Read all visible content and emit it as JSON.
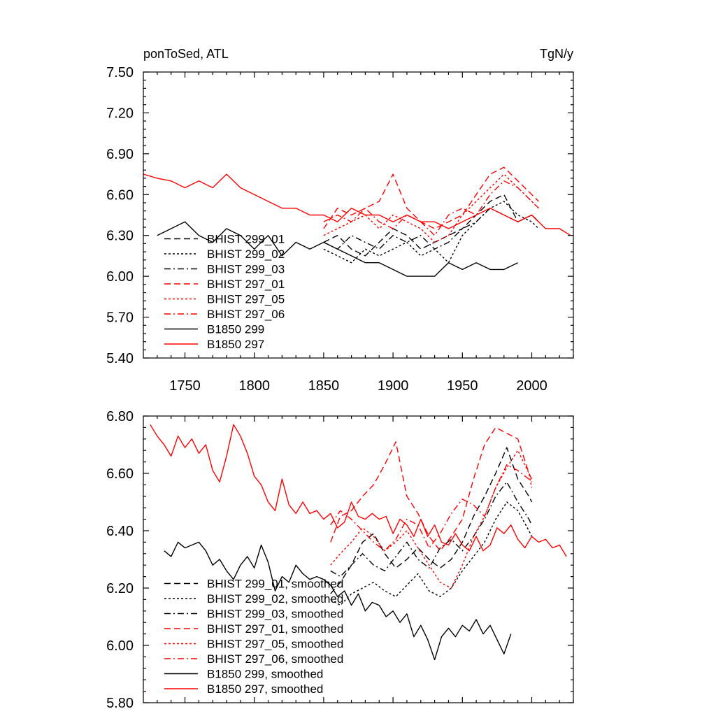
{
  "chart_data": [
    {
      "type": "line",
      "title": "ponToSed, ATL",
      "units": "TgN/y",
      "xlim": [
        1720,
        2030
      ],
      "ylim": [
        5.4,
        7.5
      ],
      "xticks": [
        1750,
        1800,
        1850,
        1900,
        1950,
        2000
      ],
      "yticks": [
        "5.40",
        "5.70",
        "6.00",
        "6.30",
        "6.60",
        "6.90",
        "7.20",
        "7.50"
      ],
      "legend_position": "lower-left",
      "series": [
        {
          "name": "BHIST 299_01",
          "color": "#000000",
          "dash": "long-dash",
          "x": [
            1850,
            1860,
            1870,
            1880,
            1890,
            1900,
            1910,
            1920,
            1930,
            1940,
            1950,
            1960,
            1970,
            1980,
            1990,
            2000,
            2005
          ],
          "y": [
            6.25,
            6.3,
            6.2,
            6.15,
            6.25,
            6.35,
            6.3,
            6.2,
            6.25,
            6.3,
            6.35,
            6.45,
            6.55,
            6.6,
            6.4,
            6.45,
            6.4
          ]
        },
        {
          "name": "BHIST 299_02",
          "color": "#000000",
          "dash": "dotted",
          "x": [
            1850,
            1860,
            1870,
            1880,
            1890,
            1900,
            1910,
            1920,
            1930,
            1940,
            1950,
            1960,
            1970,
            1980,
            1990,
            2000,
            2005
          ],
          "y": [
            6.2,
            6.15,
            6.1,
            6.2,
            6.15,
            6.2,
            6.25,
            6.15,
            6.2,
            6.1,
            6.3,
            6.4,
            6.5,
            6.55,
            6.45,
            6.4,
            6.35
          ]
        },
        {
          "name": "BHIST 299_03",
          "color": "#000000",
          "dash": "dash-dot",
          "x": [
            1850,
            1860,
            1870,
            1880,
            1890,
            1900,
            1910,
            1920,
            1930,
            1940,
            1950,
            1960,
            1970,
            1980,
            1990,
            2000,
            2005
          ],
          "y": [
            6.25,
            6.2,
            6.3,
            6.25,
            6.2,
            6.3,
            6.25,
            6.3,
            6.2,
            6.25,
            6.35,
            6.4,
            6.5,
            6.45,
            6.4,
            6.45,
            6.4
          ]
        },
        {
          "name": "BHIST 297_01",
          "color": "#ff0000",
          "dash": "long-dash",
          "x": [
            1850,
            1860,
            1870,
            1880,
            1890,
            1900,
            1910,
            1920,
            1930,
            1940,
            1950,
            1960,
            1970,
            1980,
            1990,
            2000,
            2005
          ],
          "y": [
            6.35,
            6.5,
            6.45,
            6.5,
            6.55,
            6.75,
            6.5,
            6.4,
            6.35,
            6.4,
            6.45,
            6.6,
            6.75,
            6.8,
            6.7,
            6.6,
            6.55
          ]
        },
        {
          "name": "BHIST 297_05",
          "color": "#ff0000",
          "dash": "dotted",
          "x": [
            1850,
            1860,
            1870,
            1880,
            1890,
            1900,
            1910,
            1920,
            1930,
            1940,
            1950,
            1960,
            1970,
            1980,
            1990,
            2000,
            2005
          ],
          "y": [
            6.3,
            6.35,
            6.4,
            6.45,
            6.35,
            6.45,
            6.4,
            6.35,
            6.25,
            6.3,
            6.45,
            6.55,
            6.65,
            6.75,
            6.65,
            6.55,
            6.5
          ]
        },
        {
          "name": "BHIST 297_06",
          "color": "#ff0000",
          "dash": "dash-dot",
          "x": [
            1850,
            1860,
            1870,
            1880,
            1890,
            1900,
            1910,
            1920,
            1930,
            1940,
            1950,
            1960,
            1970,
            1980,
            1990,
            2000,
            2005
          ],
          "y": [
            6.4,
            6.45,
            6.4,
            6.5,
            6.4,
            6.35,
            6.45,
            6.4,
            6.3,
            6.45,
            6.5,
            6.45,
            6.6,
            6.7,
            6.65,
            6.55,
            6.5
          ]
        },
        {
          "name": "B1850 299",
          "color": "#000000",
          "dash": "solid",
          "x": [
            1730,
            1740,
            1750,
            1760,
            1770,
            1780,
            1790,
            1800,
            1810,
            1820,
            1830,
            1840,
            1850,
            1860,
            1870,
            1880,
            1890,
            1900,
            1910,
            1920,
            1930,
            1940,
            1950,
            1960,
            1970,
            1980,
            1990
          ],
          "y": [
            6.3,
            6.35,
            6.4,
            6.3,
            6.25,
            6.35,
            6.3,
            6.2,
            6.3,
            6.15,
            6.25,
            6.2,
            6.25,
            6.2,
            6.15,
            6.1,
            6.1,
            6.05,
            6.0,
            6.0,
            6.0,
            6.1,
            6.05,
            6.1,
            6.05,
            6.05,
            6.1
          ]
        },
        {
          "name": "B1850 297",
          "color": "#ff0000",
          "dash": "solid",
          "x": [
            1720,
            1730,
            1740,
            1750,
            1760,
            1770,
            1780,
            1790,
            1800,
            1810,
            1820,
            1830,
            1840,
            1850,
            1860,
            1870,
            1880,
            1890,
            1900,
            1910,
            1920,
            1930,
            1940,
            1950,
            1960,
            1970,
            1980,
            1990,
            2000,
            2010,
            2020,
            2028
          ],
          "y": [
            6.75,
            6.72,
            6.7,
            6.65,
            6.7,
            6.65,
            6.75,
            6.65,
            6.6,
            6.55,
            6.5,
            6.5,
            6.45,
            6.45,
            6.4,
            6.5,
            6.45,
            6.45,
            6.4,
            6.45,
            6.4,
            6.4,
            6.35,
            6.4,
            6.45,
            6.5,
            6.45,
            6.4,
            6.45,
            6.35,
            6.35,
            6.3
          ]
        }
      ]
    },
    {
      "type": "line",
      "xlim": [
        1720,
        2030
      ],
      "ylim": [
        5.8,
        6.8
      ],
      "yticks": [
        "5.80",
        "6.00",
        "6.20",
        "6.40",
        "6.60",
        "6.80"
      ],
      "legend_position": "lower-left",
      "series": [
        {
          "name": "BHIST 299_01, smoothed",
          "color": "#000000",
          "dash": "long-dash",
          "x": [
            1855,
            1862,
            1870,
            1878,
            1886,
            1894,
            1902,
            1910,
            1918,
            1926,
            1934,
            1942,
            1950,
            1958,
            1966,
            1974,
            1982,
            1990,
            1998,
            2000
          ],
          "y": [
            6.18,
            6.22,
            6.28,
            6.36,
            6.39,
            6.32,
            6.27,
            6.3,
            6.34,
            6.3,
            6.27,
            6.3,
            6.36,
            6.45,
            6.52,
            6.6,
            6.69,
            6.58,
            6.52,
            6.5
          ]
        },
        {
          "name": "BHIST 299_02, smoothed",
          "color": "#000000",
          "dash": "dotted",
          "x": [
            1855,
            1862,
            1870,
            1878,
            1886,
            1894,
            1902,
            1910,
            1918,
            1926,
            1934,
            1942,
            1950,
            1958,
            1966,
            1974,
            1982,
            1990,
            1998,
            2000
          ],
          "y": [
            6.16,
            6.14,
            6.18,
            6.2,
            6.22,
            6.19,
            6.17,
            6.21,
            6.25,
            6.19,
            6.17,
            6.2,
            6.26,
            6.31,
            6.36,
            6.44,
            6.5,
            6.47,
            6.4,
            6.38
          ]
        },
        {
          "name": "BHIST 299_03, smoothed",
          "color": "#000000",
          "dash": "dash-dot",
          "x": [
            1855,
            1862,
            1870,
            1878,
            1886,
            1894,
            1902,
            1910,
            1918,
            1926,
            1934,
            1942,
            1950,
            1958,
            1966,
            1974,
            1982,
            1990,
            1998,
            2000
          ],
          "y": [
            6.26,
            6.24,
            6.28,
            6.32,
            6.28,
            6.26,
            6.31,
            6.36,
            6.3,
            6.27,
            6.34,
            6.37,
            6.33,
            6.38,
            6.44,
            6.52,
            6.57,
            6.5,
            6.44,
            6.42
          ]
        },
        {
          "name": "BHIST 297_01, smoothed",
          "color": "#ff0000",
          "dash": "long-dash",
          "x": [
            1855,
            1862,
            1870,
            1878,
            1886,
            1894,
            1902,
            1910,
            1918,
            1926,
            1934,
            1942,
            1950,
            1958,
            1966,
            1974,
            1982,
            1990,
            1998,
            2000
          ],
          "y": [
            6.36,
            6.45,
            6.47,
            6.52,
            6.56,
            6.63,
            6.71,
            6.52,
            6.46,
            6.38,
            6.33,
            6.38,
            6.44,
            6.58,
            6.7,
            6.76,
            6.74,
            6.72,
            6.6,
            6.58
          ]
        },
        {
          "name": "BHIST 297_05, smoothed",
          "color": "#ff0000",
          "dash": "dotted",
          "x": [
            1855,
            1862,
            1870,
            1878,
            1886,
            1894,
            1902,
            1910,
            1918,
            1926,
            1934,
            1942,
            1950,
            1958,
            1966,
            1974,
            1982,
            1990,
            1998,
            2000
          ],
          "y": [
            6.28,
            6.32,
            6.36,
            6.41,
            6.38,
            6.33,
            6.36,
            6.4,
            6.34,
            6.28,
            6.22,
            6.2,
            6.28,
            6.38,
            6.45,
            6.55,
            6.62,
            6.68,
            6.6,
            6.55
          ]
        },
        {
          "name": "BHIST 297_06, smoothed",
          "color": "#ff0000",
          "dash": "dash-dot",
          "x": [
            1855,
            1862,
            1870,
            1878,
            1886,
            1894,
            1902,
            1910,
            1918,
            1926,
            1934,
            1942,
            1950,
            1958,
            1966,
            1974,
            1982,
            1990,
            1998,
            2000
          ],
          "y": [
            6.42,
            6.47,
            6.44,
            6.4,
            6.36,
            6.33,
            6.37,
            6.44,
            6.42,
            6.34,
            6.39,
            6.46,
            6.51,
            6.49,
            6.45,
            6.55,
            6.63,
            6.61,
            6.58,
            6.57
          ]
        },
        {
          "name": "B1850 299, smoothed",
          "color": "#000000",
          "dash": "solid",
          "x": [
            1735,
            1740,
            1745,
            1750,
            1755,
            1760,
            1765,
            1770,
            1775,
            1780,
            1785,
            1790,
            1795,
            1800,
            1805,
            1810,
            1815,
            1820,
            1825,
            1830,
            1835,
            1840,
            1845,
            1850,
            1855,
            1860,
            1865,
            1870,
            1875,
            1880,
            1885,
            1890,
            1895,
            1900,
            1905,
            1910,
            1915,
            1920,
            1925,
            1930,
            1935,
            1940,
            1945,
            1950,
            1955,
            1960,
            1965,
            1970,
            1975,
            1980,
            1985
          ],
          "y": [
            6.33,
            6.31,
            6.36,
            6.34,
            6.35,
            6.36,
            6.33,
            6.28,
            6.3,
            6.26,
            6.23,
            6.28,
            6.31,
            6.27,
            6.35,
            6.29,
            6.19,
            6.24,
            6.22,
            6.28,
            6.25,
            6.23,
            6.24,
            6.23,
            6.21,
            6.17,
            6.19,
            6.14,
            6.18,
            6.12,
            6.15,
            6.14,
            6.1,
            6.12,
            6.08,
            6.11,
            6.03,
            6.07,
            6.02,
            5.95,
            6.03,
            6.06,
            6.03,
            6.07,
            6.05,
            6.09,
            6.04,
            6.07,
            6.02,
            5.97,
            6.04
          ]
        },
        {
          "name": "B1850 297, smoothed",
          "color": "#ff0000",
          "dash": "solid",
          "x": [
            1725,
            1730,
            1735,
            1740,
            1745,
            1750,
            1755,
            1760,
            1765,
            1770,
            1775,
            1780,
            1785,
            1790,
            1795,
            1800,
            1805,
            1810,
            1815,
            1820,
            1825,
            1830,
            1835,
            1840,
            1845,
            1850,
            1855,
            1860,
            1865,
            1870,
            1875,
            1880,
            1885,
            1890,
            1895,
            1900,
            1905,
            1910,
            1915,
            1920,
            1925,
            1930,
            1935,
            1940,
            1945,
            1950,
            1955,
            1960,
            1965,
            1970,
            1975,
            1980,
            1985,
            1990,
            1995,
            2000,
            2005,
            2010,
            2015,
            2020,
            2025
          ],
          "y": [
            6.77,
            6.73,
            6.7,
            6.66,
            6.73,
            6.69,
            6.72,
            6.67,
            6.7,
            6.61,
            6.57,
            6.66,
            6.77,
            6.73,
            6.67,
            6.59,
            6.56,
            6.5,
            6.47,
            6.58,
            6.49,
            6.46,
            6.5,
            6.46,
            6.47,
            6.44,
            6.46,
            6.41,
            6.43,
            6.5,
            6.45,
            6.44,
            6.46,
            6.44,
            6.45,
            6.39,
            6.44,
            6.42,
            6.38,
            6.44,
            6.38,
            6.42,
            6.36,
            6.35,
            6.39,
            6.35,
            6.33,
            6.38,
            6.33,
            6.35,
            6.41,
            6.39,
            6.42,
            6.37,
            6.34,
            6.38,
            6.36,
            6.37,
            6.34,
            6.35,
            6.31
          ]
        }
      ]
    }
  ]
}
